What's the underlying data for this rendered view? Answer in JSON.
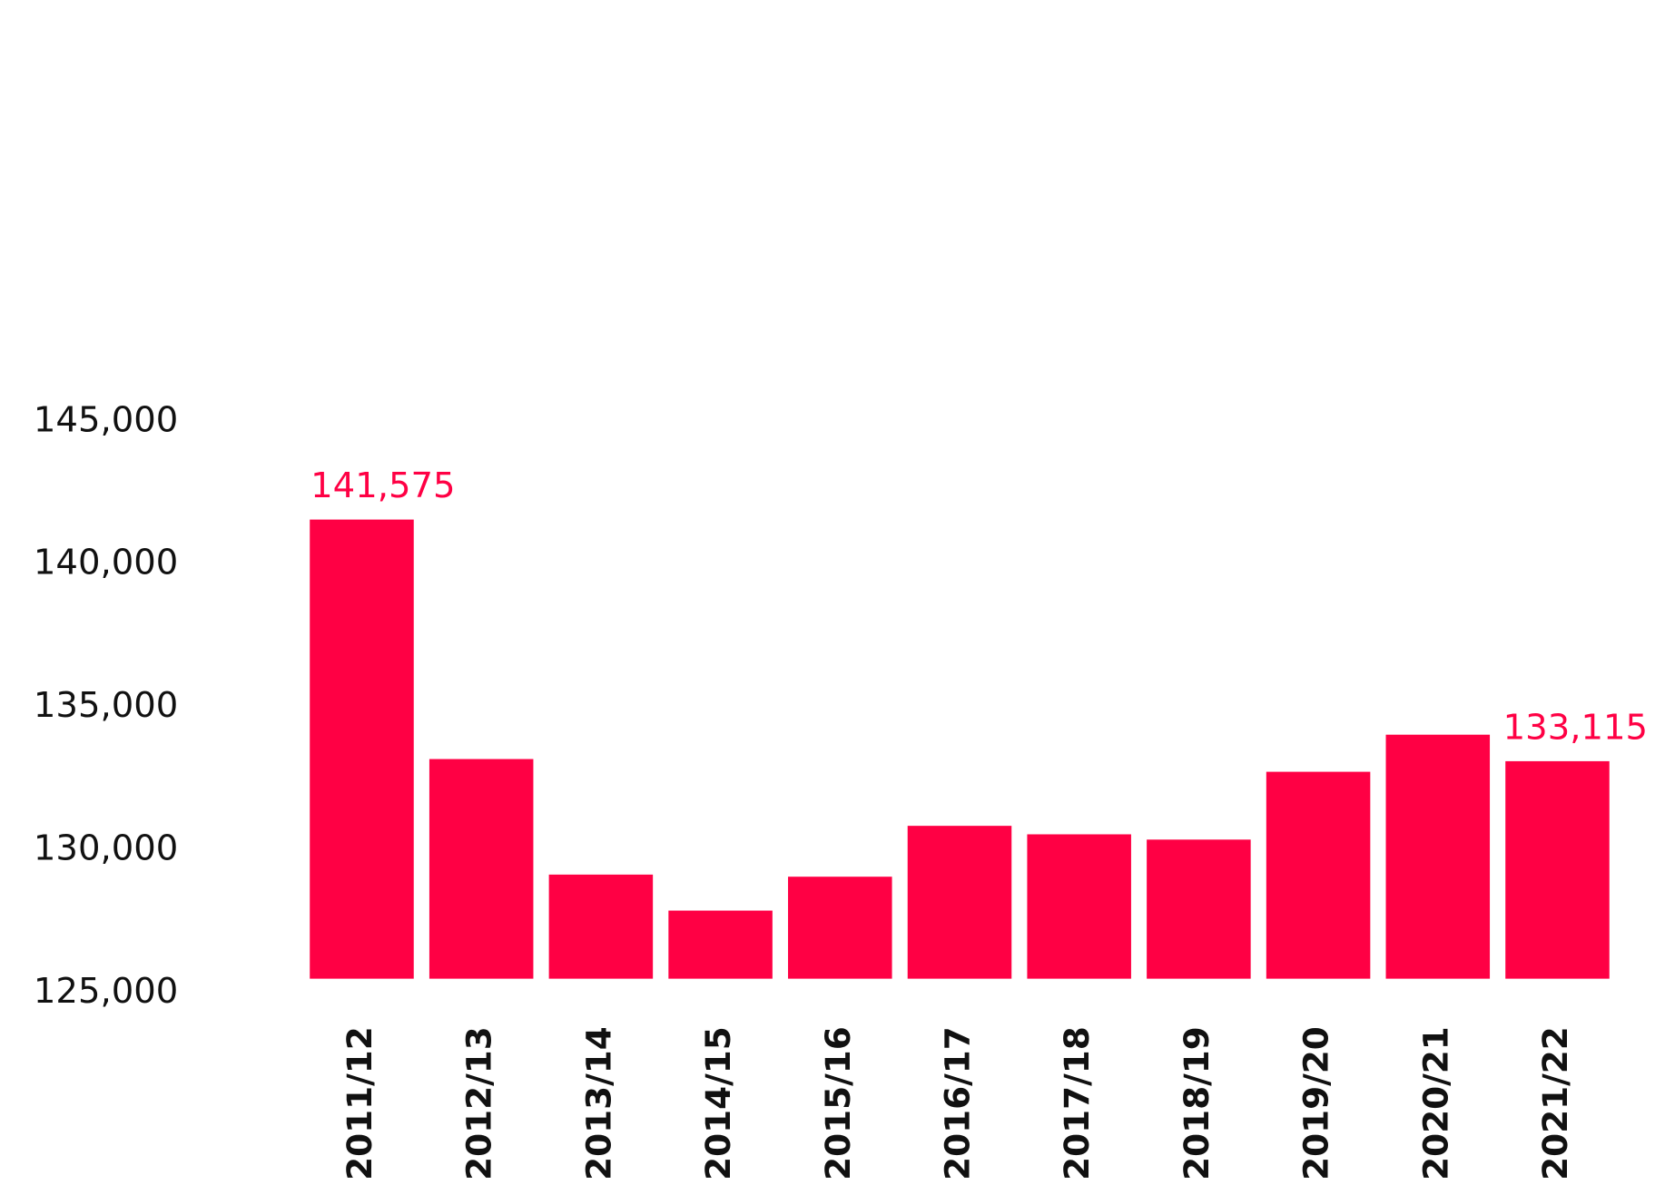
{
  "chart_data": {
    "type": "bar",
    "categories": [
      "2011/12",
      "2012/13",
      "2013/14",
      "2014/15",
      "2015/16",
      "2016/17",
      "2017/18",
      "2018/19",
      "2019/20",
      "2020/21",
      "2021/22"
    ],
    "values": [
      141575,
      133190,
      129145,
      127884,
      129071,
      130852,
      130555,
      130370,
      132744,
      134043,
      133115
    ],
    "value_labels": [
      "141,575",
      null,
      null,
      null,
      null,
      null,
      null,
      null,
      null,
      null,
      "133,115"
    ],
    "color": "#ff0044",
    "ylim": [
      125500,
      149000
    ],
    "yticks": [
      {
        "value": 125000,
        "label": "125,000"
      },
      {
        "value": 130000,
        "label": "130,000"
      },
      {
        "value": 135000,
        "label": "135,000"
      },
      {
        "value": 140000,
        "label": "140,000"
      },
      {
        "value": 145000,
        "label": "145,000"
      }
    ],
    "grid": false
  }
}
